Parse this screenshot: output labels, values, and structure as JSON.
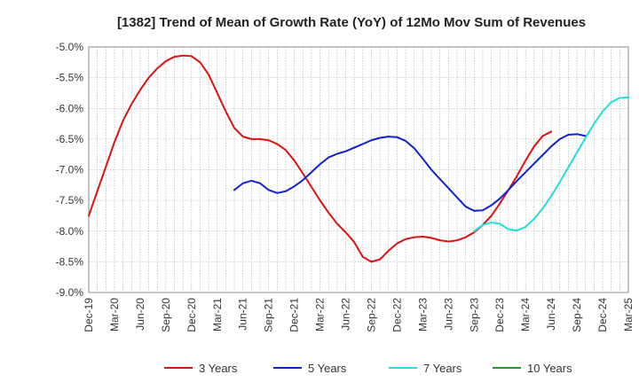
{
  "chart_data": {
    "type": "line",
    "title": "[1382]  Trend of Mean of Growth Rate (YoY) of 12Mo Mov Sum of Revenues",
    "xlabel": "",
    "ylabel": "",
    "ylim": [
      -9.0,
      -5.0
    ],
    "y_ticks": [
      -5.0,
      -5.5,
      -6.0,
      -6.5,
      -7.0,
      -7.5,
      -8.0,
      -8.5,
      -9.0
    ],
    "y_tick_labels": [
      "-5.0%",
      "-5.5%",
      "-6.0%",
      "-6.5%",
      "-7.0%",
      "-7.5%",
      "-8.0%",
      "-8.5%",
      "-9.0%"
    ],
    "x_range_months": [
      0,
      63
    ],
    "x_tick_labels": [
      "Dec-19",
      "Mar-20",
      "Jun-20",
      "Sep-20",
      "Dec-20",
      "Mar-21",
      "Jun-21",
      "Sep-21",
      "Dec-21",
      "Mar-22",
      "Jun-22",
      "Sep-22",
      "Dec-22",
      "Mar-23",
      "Jun-23",
      "Sep-23",
      "Dec-23",
      "Mar-24",
      "Jun-24",
      "Sep-24",
      "Dec-24",
      "Mar-25"
    ],
    "grid": true,
    "legend_position": "bottom",
    "series": [
      {
        "name": "3 Years",
        "color": "#dd1111",
        "x": [
          0,
          1,
          2,
          3,
          4,
          5,
          6,
          7,
          8,
          9,
          10,
          11,
          12,
          13,
          14,
          15,
          16,
          17,
          18,
          19,
          20,
          21,
          22,
          23,
          24,
          25,
          26,
          27,
          28,
          29,
          30,
          31,
          32,
          33,
          34,
          35,
          36,
          37,
          38,
          39,
          40,
          41,
          42,
          43,
          44,
          45,
          46,
          47,
          48,
          49,
          50,
          51,
          52,
          53,
          54,
          55,
          56,
          57,
          58,
          59,
          60
        ],
        "values": [
          -7.75,
          -7.35,
          -6.95,
          -6.55,
          -6.2,
          -5.93,
          -5.7,
          -5.5,
          -5.35,
          -5.23,
          -5.16,
          -5.14,
          -5.15,
          -5.25,
          -5.45,
          -5.75,
          -6.05,
          -6.32,
          -6.46,
          -6.5,
          -6.5,
          -6.52,
          -6.58,
          -6.68,
          -6.85,
          -7.06,
          -7.28,
          -7.5,
          -7.7,
          -7.88,
          -8.02,
          -8.18,
          -8.42,
          -8.5,
          -8.46,
          -8.32,
          -8.2,
          -8.13,
          -8.1,
          -8.09,
          -8.11,
          -8.15,
          -8.17,
          -8.15,
          -8.1,
          -8.02,
          -7.9,
          -7.75,
          -7.55,
          -7.33,
          -7.1,
          -6.85,
          -6.62,
          -6.45,
          -6.38,
          null,
          null,
          null,
          null,
          null,
          null
        ]
      },
      {
        "name": "5 Years",
        "color": "#1122cc",
        "x": [
          17,
          18,
          19,
          20,
          21,
          22,
          23,
          24,
          25,
          26,
          27,
          28,
          29,
          30,
          31,
          32,
          33,
          34,
          35,
          36,
          37,
          38,
          39,
          40,
          41,
          42,
          43,
          44,
          45,
          46,
          47,
          48,
          49,
          50,
          51,
          52,
          53,
          54,
          55,
          56,
          57,
          58,
          59,
          60,
          61
        ],
        "values": [
          -7.33,
          -7.22,
          -7.18,
          -7.22,
          -7.33,
          -7.38,
          -7.35,
          -7.27,
          -7.17,
          -7.04,
          -6.91,
          -6.8,
          -6.74,
          -6.7,
          -6.64,
          -6.58,
          -6.52,
          -6.48,
          -6.46,
          -6.47,
          -6.53,
          -6.65,
          -6.82,
          -7.0,
          -7.15,
          -7.3,
          -7.45,
          -7.6,
          -7.67,
          -7.66,
          -7.58,
          -7.47,
          -7.33,
          -7.18,
          -7.04,
          -6.9,
          -6.76,
          -6.62,
          -6.5,
          -6.43,
          -6.42,
          -6.45,
          null,
          null,
          null
        ]
      },
      {
        "name": "7 Years",
        "color": "#22dddd",
        "x": [
          45,
          46,
          47,
          48,
          49,
          50,
          51,
          52,
          53,
          54,
          55,
          56,
          57,
          58,
          59,
          60,
          61,
          62,
          63,
          64,
          65,
          66,
          67,
          68,
          69,
          70,
          71,
          72
        ],
        "values": [
          -8.0,
          -7.9,
          -7.86,
          -7.88,
          -7.97,
          -7.99,
          -7.93,
          -7.8,
          -7.63,
          -7.43,
          -7.2,
          -6.96,
          -6.72,
          -6.48,
          -6.25,
          -6.05,
          -5.9,
          -5.83,
          -5.82,
          null,
          null,
          null,
          null,
          null,
          null,
          null,
          null,
          null
        ]
      },
      {
        "name": "10 Years",
        "color": "#229922",
        "x": [],
        "values": []
      }
    ]
  }
}
